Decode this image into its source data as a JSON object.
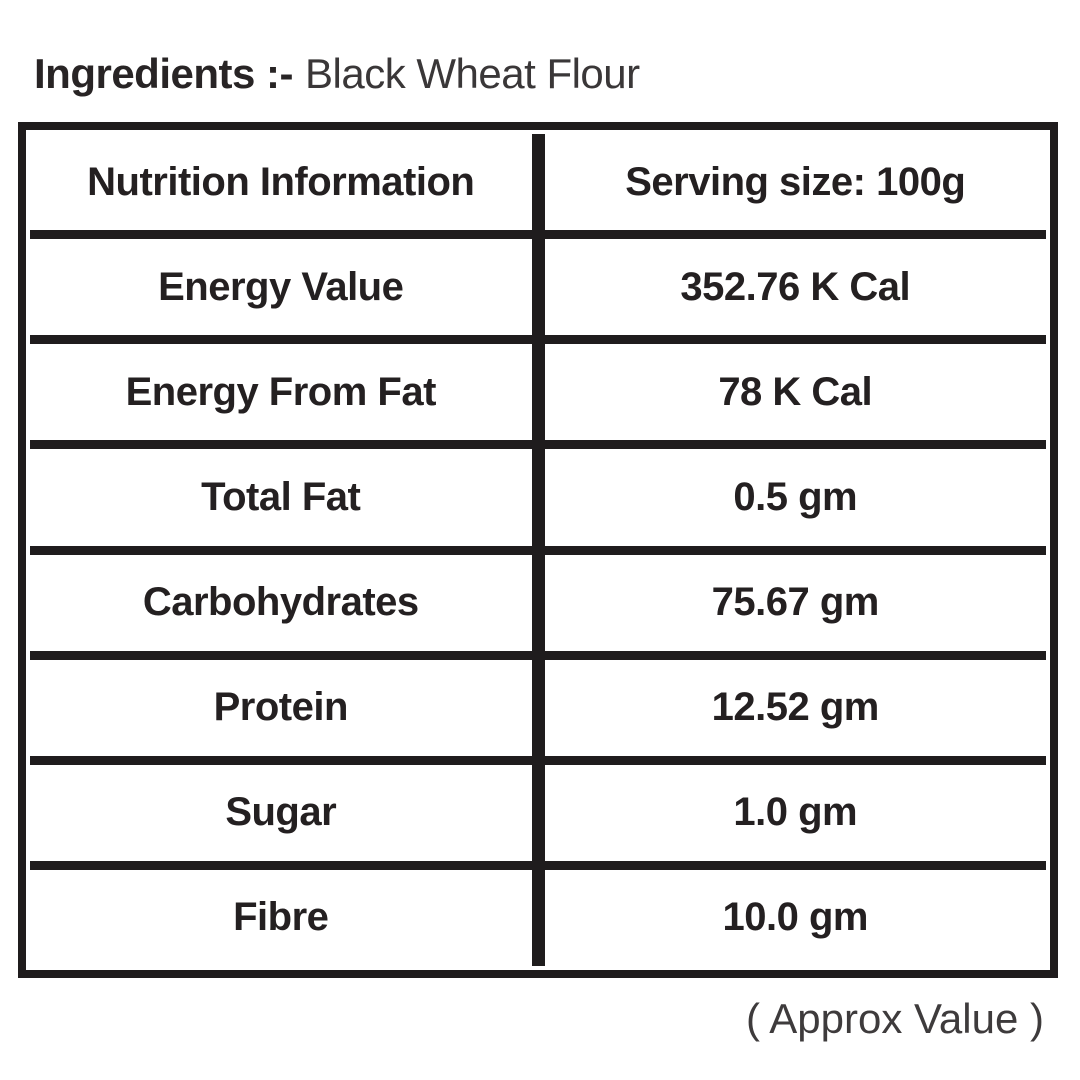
{
  "title": {
    "label": "Ingredients :-",
    "value": "Black Wheat Flour"
  },
  "table": {
    "header": {
      "label": "Nutrition Information",
      "value": "Serving size: 100g"
    },
    "rows": [
      {
        "label": "Energy Value",
        "value": "352.76 K Cal"
      },
      {
        "label": "Energy From Fat",
        "value": "78 K Cal"
      },
      {
        "label": "Total Fat",
        "value": "0.5 gm"
      },
      {
        "label": "Carbohydrates",
        "value": "75.67 gm"
      },
      {
        "label": "Protein",
        "value": "12.52 gm"
      },
      {
        "label": "Sugar",
        "value": "1.0 gm"
      },
      {
        "label": "Fibre",
        "value": "10.0 gm"
      }
    ]
  },
  "footer": "( Approx Value )",
  "colors": {
    "border": "#1f1c1d",
    "cell_text": "#242021",
    "title_bold": "#282425",
    "title_regular": "#3a3738",
    "footer_text": "#3e3b3c",
    "background": "#ffffff"
  }
}
